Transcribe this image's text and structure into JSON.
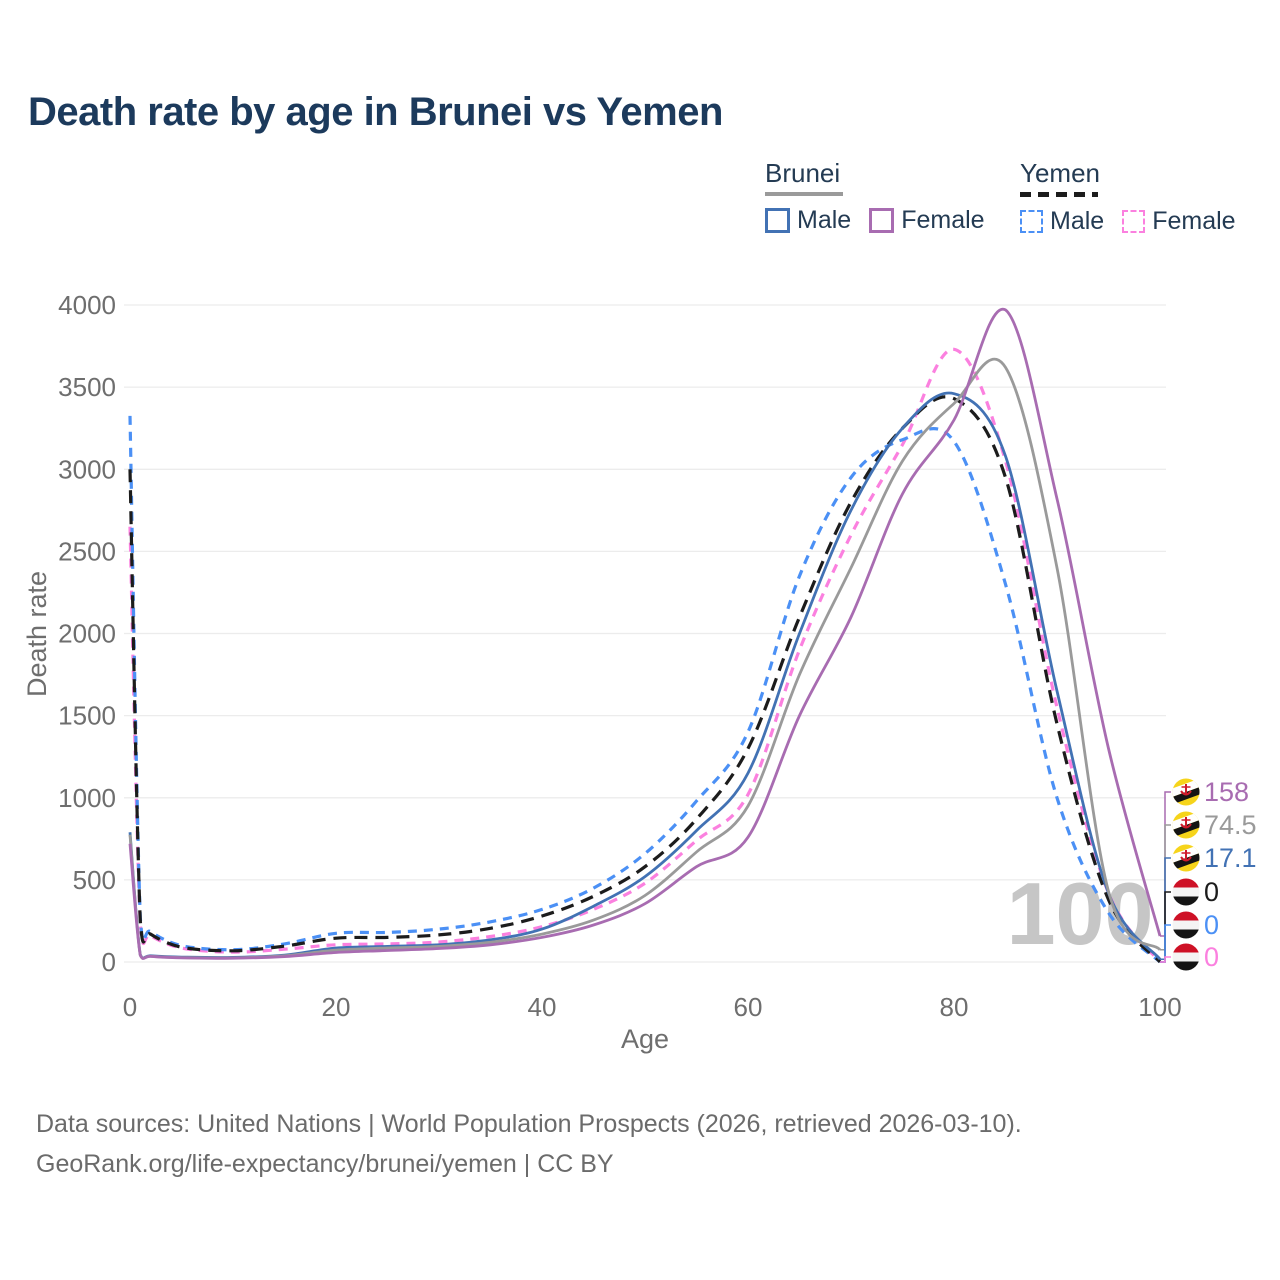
{
  "header": {
    "title": "Death rate by age in Brunei vs Yemen"
  },
  "legend": {
    "groups": [
      {
        "country": "Brunei",
        "style": "solid",
        "color": "#9a9a9a",
        "items": [
          {
            "label": "Male",
            "color": "#4272b4"
          },
          {
            "label": "Female",
            "color": "#a86cb1"
          }
        ]
      },
      {
        "country": "Yemen",
        "style": "dashed",
        "color": "#1c1c1c",
        "items": [
          {
            "label": "Male",
            "color": "#4b90f5"
          },
          {
            "label": "Female",
            "color": "#fb80df"
          }
        ]
      }
    ]
  },
  "chart_data": {
    "type": "line",
    "title": "Death rate by age in Brunei vs Yemen",
    "xlabel": "Age",
    "ylabel": "Death rate",
    "xlim": [
      0,
      100
    ],
    "ylim": [
      0,
      4000
    ],
    "xticks": [
      0,
      20,
      40,
      60,
      80,
      100
    ],
    "yticks": [
      0,
      500,
      1000,
      1500,
      2000,
      2500,
      3000,
      3500,
      4000
    ],
    "grid": "horizontal",
    "legend_position": "top-right",
    "watermark": "100",
    "x": [
      0,
      1,
      2,
      5,
      10,
      15,
      20,
      25,
      30,
      35,
      40,
      45,
      50,
      55,
      60,
      65,
      70,
      75,
      80,
      85,
      90,
      95,
      100
    ],
    "series": [
      {
        "name": "Brunei Female",
        "country": "Brunei",
        "sex": "Female",
        "dash": "solid",
        "color": "#a86cb1",
        "flag": "brunei",
        "end_label": "158",
        "values": [
          720,
          40,
          34,
          25,
          23,
          33,
          58,
          70,
          82,
          105,
          150,
          225,
          355,
          580,
          760,
          1500,
          2100,
          2850,
          3300,
          3970,
          2820,
          1300,
          158
        ]
      },
      {
        "name": "Brunei",
        "country": "Brunei",
        "sex": "Both",
        "dash": "solid",
        "color": "#9a9a9a",
        "flag": "brunei",
        "end_label": "74.5",
        "values": [
          775,
          42,
          35,
          27,
          25,
          38,
          72,
          85,
          95,
          120,
          170,
          255,
          405,
          670,
          950,
          1750,
          2400,
          3050,
          3400,
          3620,
          2400,
          430,
          74.5
        ]
      },
      {
        "name": "Brunei Male",
        "country": "Brunei",
        "sex": "Male",
        "dash": "solid",
        "color": "#4272b4",
        "flag": "brunei",
        "end_label": "17.1",
        "values": [
          790,
          45,
          38,
          30,
          28,
          42,
          85,
          95,
          105,
          135,
          200,
          340,
          520,
          800,
          1150,
          2000,
          2750,
          3250,
          3460,
          3080,
          1650,
          420,
          17.1
        ]
      },
      {
        "name": "Yemen",
        "country": "Yemen",
        "sex": "Both",
        "dash": "dashed",
        "color": "#1c1c1c",
        "flag": "yemen",
        "end_label": "0",
        "values": [
          3000,
          250,
          170,
          90,
          68,
          97,
          145,
          150,
          165,
          205,
          280,
          400,
          580,
          870,
          1300,
          2100,
          2800,
          3250,
          3430,
          2950,
          1450,
          380,
          0
        ]
      },
      {
        "name": "Yemen Male",
        "country": "Yemen",
        "sex": "Male",
        "dash": "dashed",
        "color": "#4b90f5",
        "flag": "yemen",
        "end_label": "0",
        "values": [
          3325,
          270,
          185,
          100,
          75,
          110,
          175,
          180,
          200,
          245,
          320,
          450,
          660,
          980,
          1400,
          2350,
          2950,
          3180,
          3170,
          2300,
          1000,
          300,
          0
        ]
      },
      {
        "name": "Yemen Female",
        "country": "Yemen",
        "sex": "Female",
        "dash": "dashed",
        "color": "#fb80df",
        "flag": "yemen",
        "end_label": "0",
        "values": [
          2650,
          230,
          160,
          85,
          60,
          78,
          105,
          110,
          122,
          155,
          215,
          320,
          480,
          740,
          1020,
          1900,
          2600,
          3150,
          3730,
          3050,
          1550,
          420,
          0
        ]
      }
    ]
  },
  "footer": {
    "line1": "Data sources: United Nations | World Population Prospects (2026, retrieved 2026-03-10).",
    "line2": "GeoRank.org/life-expectancy/brunei/yemen | CC BY"
  }
}
